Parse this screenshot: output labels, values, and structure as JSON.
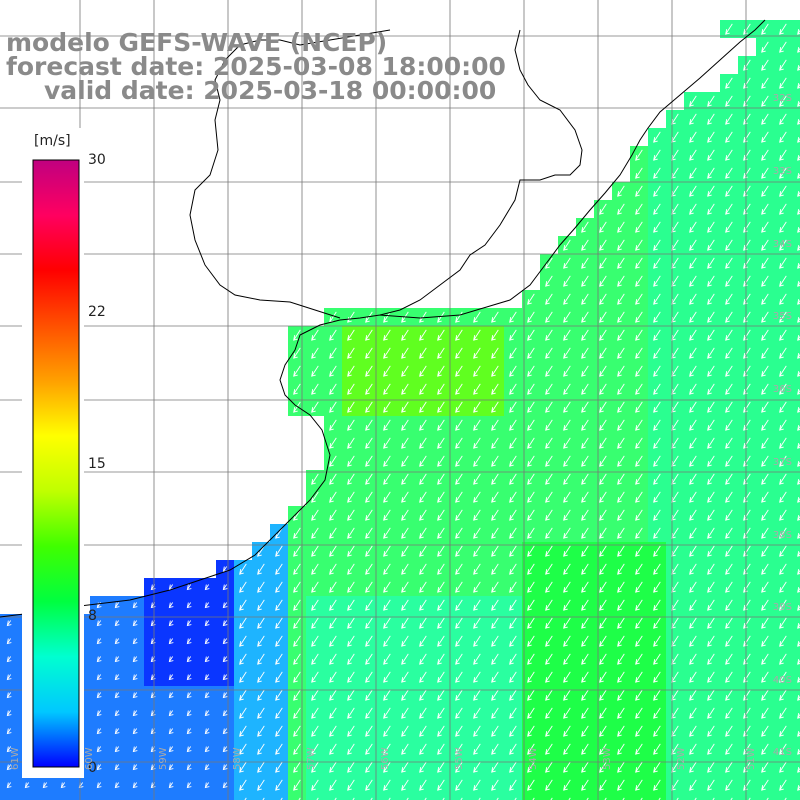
{
  "title": {
    "model": "modelo GEFS-WAVE (NCEP)",
    "forecast": "forecast date: 2025-03-08 18:00:00",
    "valid": "valid date: 2025-03-18 00:00:00"
  },
  "colorbar": {
    "unit": "[m/s]",
    "min": 0,
    "max": 30,
    "ticks": [
      "30",
      "22",
      "15",
      "8",
      "0"
    ],
    "stops": [
      "#0000ff",
      "#00c8ff",
      "#00ffd0",
      "#00ff40",
      "#40ff00",
      "#c0ff00",
      "#ffff00",
      "#ffa000",
      "#ff5000",
      "#ff0000",
      "#ff0060",
      "#c00080"
    ]
  },
  "lat_labels": [
    "32S",
    "33S",
    "34S",
    "35S",
    "36S",
    "37S",
    "38S",
    "39S",
    "40S",
    "41S"
  ],
  "lon_labels": [
    "61W",
    "60W",
    "59W",
    "58W",
    "57W",
    "56W",
    "55W",
    "54W",
    "53W",
    "52W",
    "51W"
  ],
  "colors": {
    "land": "#ffffff",
    "grid": "#777777",
    "coast": "#000000",
    "arrow": "#ffffff",
    "label": "#8a8a8a"
  }
}
